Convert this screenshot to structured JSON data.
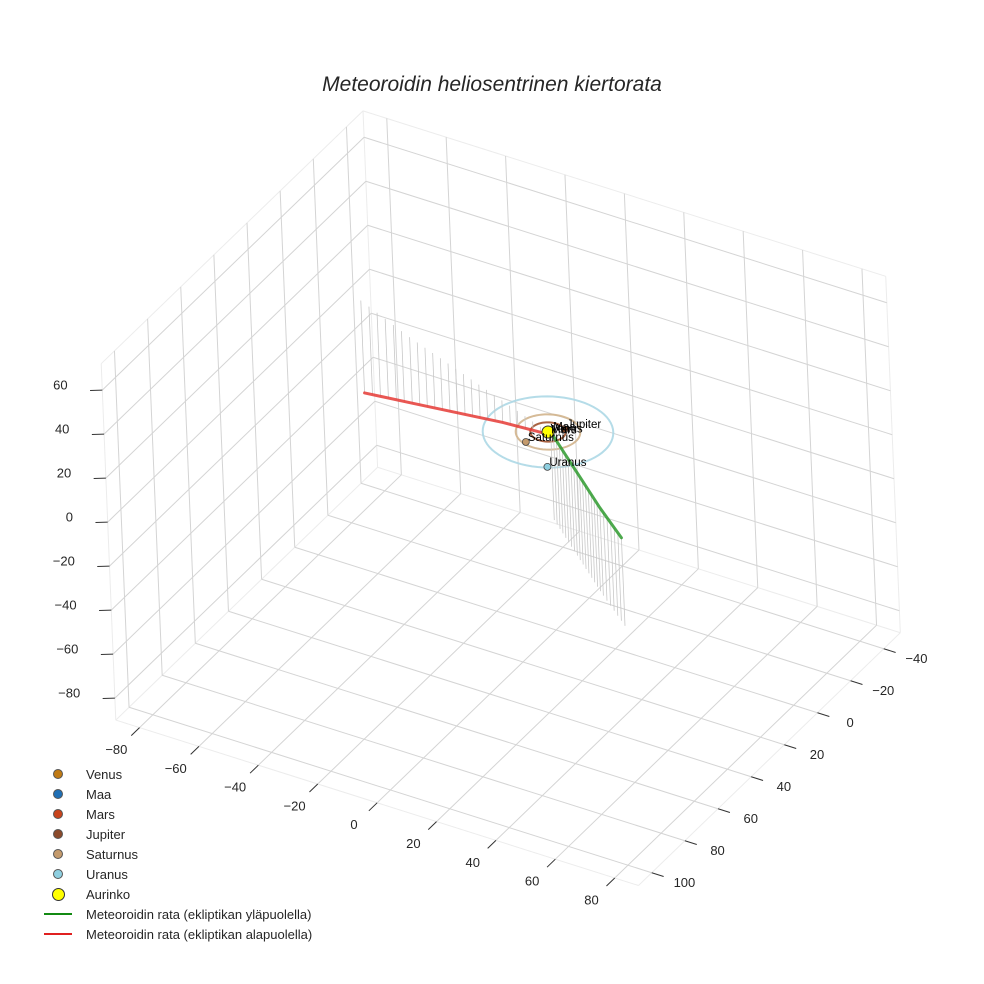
{
  "chart_data": {
    "type": "scatter3d",
    "title": "Meteoroidin heliosentrinen kiertorata",
    "axes": {
      "x": {
        "label": "",
        "ticks": [
          -80,
          -60,
          -40,
          -20,
          0,
          20,
          40,
          60,
          80
        ],
        "range": [
          -88,
          88
        ]
      },
      "y": {
        "label": "",
        "ticks": [
          -40,
          -20,
          0,
          20,
          40,
          60,
          80,
          100
        ],
        "range": [
          -50,
          108
        ]
      },
      "z": {
        "label": "",
        "ticks": [
          -80,
          -60,
          -40,
          -20,
          0,
          20,
          40,
          60
        ],
        "range": [
          -90,
          72
        ]
      }
    },
    "grid": true,
    "legend_position": "lower-left",
    "planets": [
      {
        "name": "Venus",
        "color": "#c07a14",
        "orbit_radius": 0.72,
        "position": [
          0.5,
          0.5,
          0
        ]
      },
      {
        "name": "Maa",
        "color": "#1f6fb5",
        "orbit_radius": 1.0,
        "position": [
          0.7,
          -0.7,
          0
        ]
      },
      {
        "name": "Mars",
        "color": "#c8441c",
        "orbit_radius": 1.52,
        "position": [
          1.0,
          1.1,
          0
        ]
      },
      {
        "name": "Jupiter",
        "color": "#8b4a2b",
        "orbit_radius": 5.2,
        "position": [
          3.5,
          -3.8,
          0
        ]
      },
      {
        "name": "Saturnus",
        "color": "#c49a6c",
        "orbit_radius": 9.5,
        "position": [
          -3.0,
          8.0,
          0
        ]
      },
      {
        "name": "Uranus",
        "color": "#8ecfe0",
        "orbit_radius": 19.2,
        "position": [
          9.0,
          16.5,
          0
        ]
      }
    ],
    "sun": {
      "name": "Aurinko",
      "color": "#ffff00",
      "position": [
        0,
        0,
        0
      ]
    },
    "orbit_colors": {
      "Jupiter": "#a0522d",
      "Saturnus": "#d2b48c",
      "Uranus": "#add8e6"
    },
    "series": [
      {
        "name": "Meteoroidin rata (ekliptikan yläpuolella)",
        "color": "#2e9a2e",
        "points": [
          [
            0,
            0,
            2
          ],
          [
            12,
            11,
            3
          ],
          [
            24,
            22,
            4
          ],
          [
            36,
            33,
            5
          ],
          [
            50,
            45,
            6
          ]
        ]
      },
      {
        "name": "Meteoroidin rata (ekliptikan alapuolella)",
        "color": "#e53935",
        "points": [
          [
            0,
            0,
            -1
          ],
          [
            -20,
            -8,
            -10
          ],
          [
            -40,
            -16,
            -20
          ],
          [
            -60,
            -24,
            -30
          ],
          [
            -82,
            -34,
            -42
          ]
        ]
      }
    ]
  },
  "legend": {
    "items": [
      {
        "label": "Venus",
        "kind": "dot",
        "color": "#c07a14"
      },
      {
        "label": "Maa",
        "kind": "dot",
        "color": "#1f6fb5"
      },
      {
        "label": "Mars",
        "kind": "dot",
        "color": "#c8441c"
      },
      {
        "label": "Jupiter",
        "kind": "dot",
        "color": "#8b4a2b"
      },
      {
        "label": "Saturnus",
        "kind": "dot",
        "color": "#c49a6c"
      },
      {
        "label": "Uranus",
        "kind": "dot",
        "color": "#8ecfe0"
      },
      {
        "label": "Aurinko",
        "kind": "bigdot",
        "color": "#ffff00"
      },
      {
        "label": "Meteoroidin rata (ekliptikan yläpuolella)",
        "kind": "line",
        "color": "#138a13"
      },
      {
        "label": "Meteoroidin rata (ekliptikan alapuolella)",
        "kind": "line",
        "color": "#e02020"
      }
    ]
  }
}
